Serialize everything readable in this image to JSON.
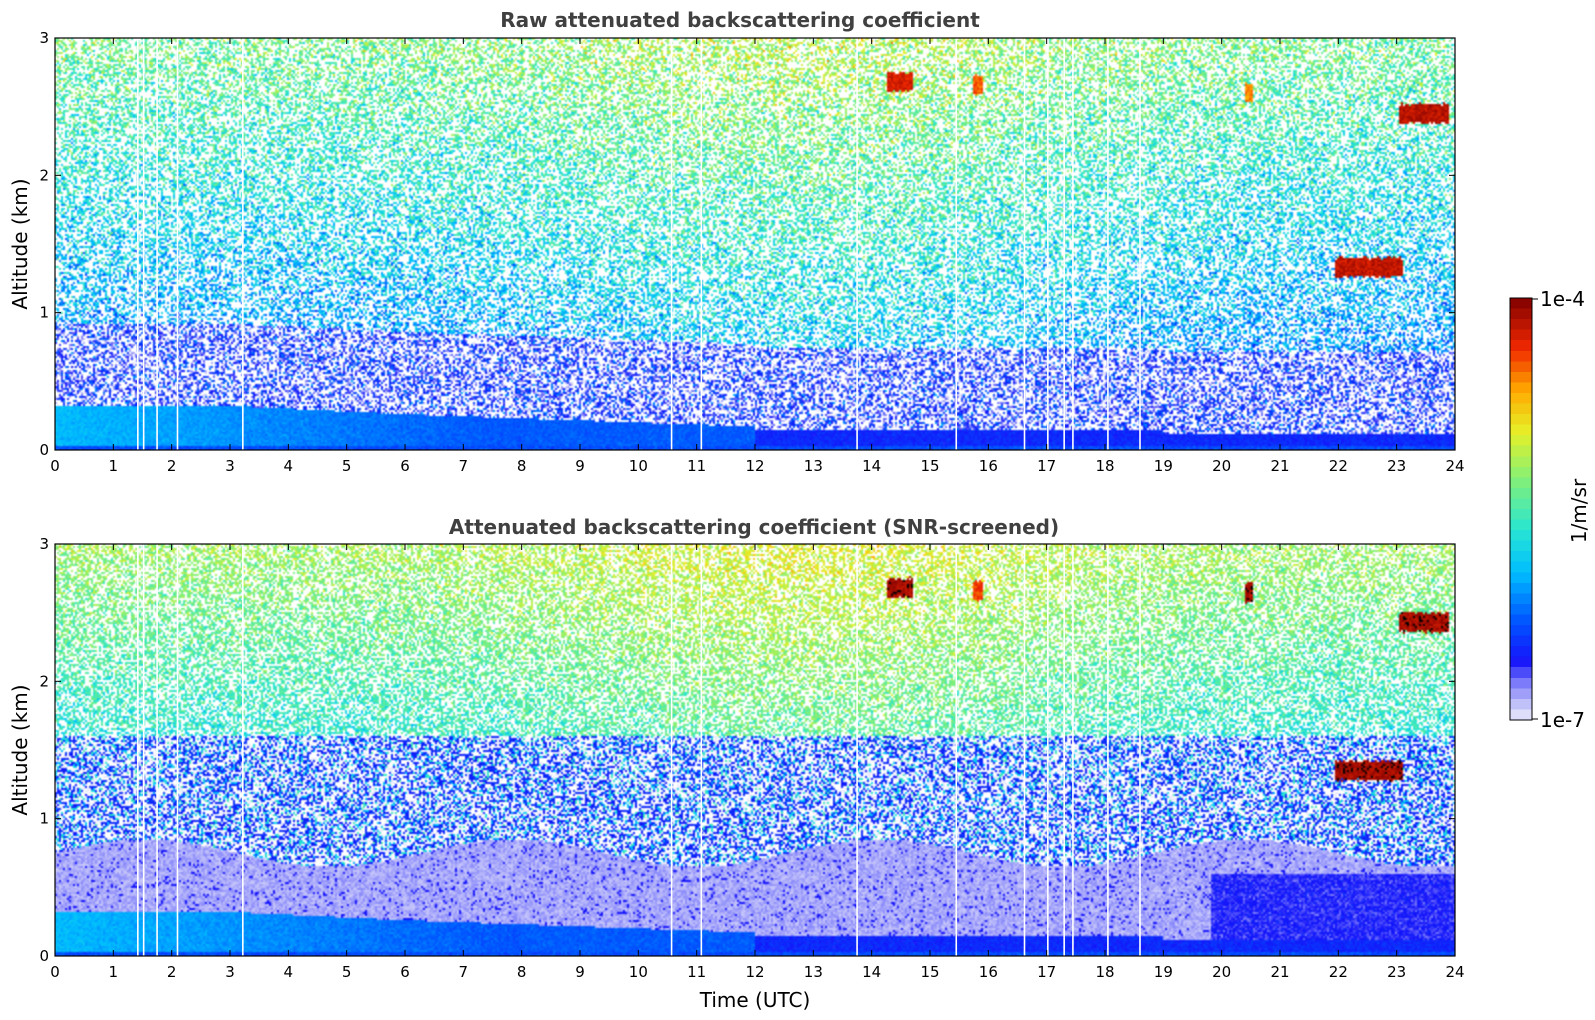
{
  "chart_data": [
    {
      "type": "heatmap",
      "title": "Raw attenuated backscattering coefficient",
      "variant": "raw",
      "xlabel": "",
      "ylabel": "Altitude (km)",
      "xlim": [
        0,
        24
      ],
      "ylim": [
        0,
        3
      ],
      "xticks": [
        "0",
        "1",
        "2",
        "3",
        "4",
        "5",
        "6",
        "7",
        "8",
        "9",
        "10",
        "11",
        "12",
        "13",
        "14",
        "15",
        "16",
        "17",
        "18",
        "19",
        "20",
        "21",
        "22",
        "23",
        "24"
      ],
      "yticks": [
        "0",
        "1",
        "2",
        "3"
      ],
      "gap_times_utc": [
        1.42,
        1.52,
        1.75,
        2.1,
        3.22,
        10.57,
        11.08,
        13.75,
        15.45,
        16.62,
        17.02,
        17.3,
        17.45,
        18.05,
        18.6
      ],
      "cloud_features": [
        {
          "t0": 14.25,
          "t1": 14.7,
          "alt_km": 2.68,
          "level": 0.95
        },
        {
          "t0": 15.75,
          "t1": 15.9,
          "alt_km": 2.66,
          "level": 0.88
        },
        {
          "t0": 20.4,
          "t1": 20.55,
          "alt_km": 2.6,
          "level": 0.85
        },
        {
          "t0": 23.05,
          "t1": 23.9,
          "alt_km": 2.45,
          "level": 0.98
        },
        {
          "t0": 21.95,
          "t1": 23.1,
          "alt_km": 1.33,
          "level": 0.97
        }
      ]
    },
    {
      "type": "heatmap",
      "title": "Attenuated backscattering coefficient (SNR-screened)",
      "variant": "screened",
      "xlabel": "Time (UTC)",
      "ylabel": "Altitude (km)",
      "xlim": [
        0,
        24
      ],
      "ylim": [
        0,
        3
      ],
      "xticks": [
        "0",
        "1",
        "2",
        "3",
        "4",
        "5",
        "6",
        "7",
        "8",
        "9",
        "10",
        "11",
        "12",
        "13",
        "14",
        "15",
        "16",
        "17",
        "18",
        "19",
        "20",
        "21",
        "22",
        "23",
        "24"
      ],
      "yticks": [
        "0",
        "1",
        "2",
        "3"
      ],
      "gap_times_utc": [
        1.42,
        1.52,
        1.75,
        2.1,
        3.22,
        10.57,
        11.08,
        13.75,
        15.45,
        16.62,
        17.02,
        17.3,
        17.45,
        18.05,
        18.6
      ],
      "cloud_features": [
        {
          "t0": 14.25,
          "t1": 14.7,
          "alt_km": 2.68,
          "level": 1.0
        },
        {
          "t0": 15.75,
          "t1": 15.9,
          "alt_km": 2.66,
          "level": 0.9
        },
        {
          "t0": 20.4,
          "t1": 20.55,
          "alt_km": 2.65,
          "level": 1.0
        },
        {
          "t0": 23.05,
          "t1": 23.9,
          "alt_km": 2.43,
          "level": 1.0
        },
        {
          "t0": 21.95,
          "t1": 23.1,
          "alt_km": 1.35,
          "level": 1.0
        }
      ]
    }
  ],
  "colorbar": {
    "label": "1/m/sr",
    "max_label": "1e-4",
    "min_label": "1e-7",
    "colormap": "jet with white/lavender low end",
    "low_color": "#ececfc",
    "high_color": "#800000",
    "saturation_color": "#000000"
  }
}
